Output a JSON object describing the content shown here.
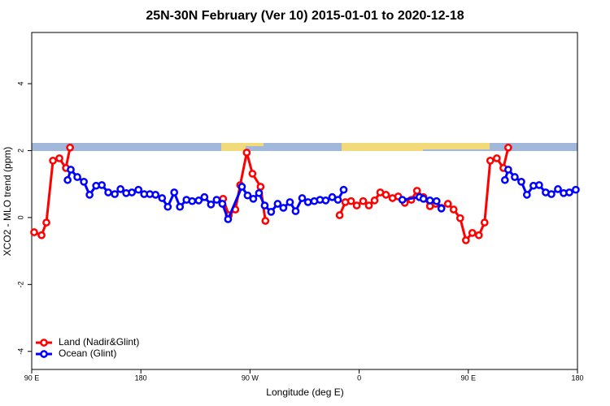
{
  "chart_data": {
    "type": "line",
    "title": "25N-30N February (Ver 10)   2015-01-01 to 2020-12-18",
    "x_label": "Longitude (deg E)",
    "y_label": "XCO2 - MLO trend (ppm)",
    "xlim": [
      90,
      540
    ],
    "xticks": [
      {
        "value": 90,
        "label": "90 E"
      },
      180,
      {
        "value": 270,
        "label": "90 W"
      },
      {
        "value": 360,
        "label": "0"
      },
      {
        "value": 450,
        "label": "90 E"
      },
      {
        "value": 540,
        "label": "180"
      }
    ],
    "ylim": [
      -4.54,
      5.53
    ],
    "yticks": [
      -4,
      -2,
      0,
      2,
      4
    ],
    "legend": "bottom-left",
    "series": [
      {
        "name": "Land (Nadir&Glint)",
        "color": "#ff0000",
        "x": [
          92.0,
          98.1,
          102.1,
          107.5,
          112.8,
          118.2,
          121.6,
          null,
          247.8,
          252.5,
          257.9,
          261.9,
          267.3,
          272.0,
          278.7,
          282.7,
          null,
          343.9,
          348.6,
          353.3,
          358.0,
          363.3,
          368.0,
          372.7,
          377.4,
          382.1,
          387.5,
          392.2,
          397.6,
          403.0,
          407.7,
          413.0,
          418.4,
          423.1,
          427.8,
          433.2,
          437.9,
          443.3,
          448.0,
          453.3,
          458.7,
          463.4,
          468.1,
          473.5,
          478.9,
          482.9
        ],
        "values": [
          -0.44,
          -0.53,
          -0.15,
          1.7,
          1.77,
          1.48,
          2.09,
          null,
          0.56,
          0.07,
          0.24,
          0.97,
          1.94,
          1.31,
          0.92,
          -0.1,
          null,
          0.07,
          0.46,
          0.49,
          0.36,
          0.49,
          0.36,
          0.51,
          0.75,
          0.68,
          0.58,
          0.63,
          0.44,
          0.53,
          0.8,
          0.61,
          0.34,
          0.41,
          0.29,
          0.41,
          0.24,
          -0.02,
          -0.68,
          -0.46,
          -0.53,
          -0.15,
          1.7,
          1.77,
          1.48,
          2.09
        ]
      },
      {
        "name": "Ocean (Glint)",
        "color": "#0000ff",
        "x": [
          119.6,
          122.2,
          127.6,
          133.0,
          137.7,
          143.1,
          147.8,
          153.1,
          158.5,
          163.2,
          167.9,
          172.6,
          178.0,
          182.7,
          187.4,
          192.1,
          197.5,
          202.2,
          207.5,
          212.2,
          217.6,
          222.3,
          227.7,
          232.4,
          237.8,
          242.5,
          247.2,
          251.9,
          263.3,
          268.0,
          272.7,
          277.4,
          282.1,
          287.4,
          292.8,
          297.5,
          302.9,
          307.6,
          313.0,
          317.8,
          323.0,
          327.7,
          332.4,
          337.8,
          342.5,
          347.2,
          null,
          395.6,
          409.7,
          413.0,
          418.4,
          423.8,
          427.8,
          null,
          480.2,
          482.9,
          488.3,
          493.7,
          498.3,
          503.7,
          508.4,
          513.8,
          518.5,
          523.9,
          528.6,
          533.3,
          538.6
        ],
        "values": [
          1.12,
          1.43,
          1.21,
          1.07,
          0.68,
          0.95,
          0.97,
          0.75,
          0.7,
          0.85,
          0.73,
          0.75,
          0.83,
          0.7,
          0.7,
          0.68,
          0.58,
          0.32,
          0.75,
          0.32,
          0.53,
          0.49,
          0.51,
          0.61,
          0.39,
          0.53,
          0.41,
          -0.05,
          0.92,
          0.66,
          0.56,
          0.73,
          0.36,
          0.17,
          0.41,
          0.29,
          0.46,
          0.19,
          0.58,
          0.46,
          0.49,
          0.53,
          0.51,
          0.61,
          0.53,
          0.83,
          null,
          0.53,
          0.61,
          0.56,
          0.51,
          0.49,
          0.27,
          null,
          1.12,
          1.43,
          1.21,
          1.07,
          0.68,
          0.95,
          0.97,
          0.75,
          0.7,
          0.85,
          0.73,
          0.75,
          0.83
        ]
      }
    ]
  }
}
